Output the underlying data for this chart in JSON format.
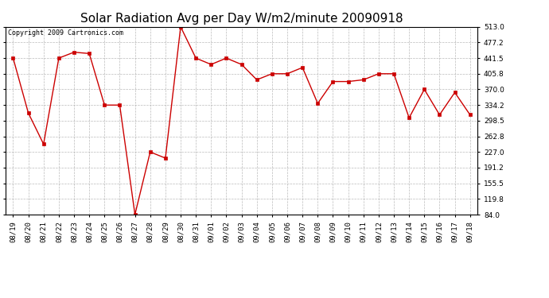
{
  "title": "Solar Radiation Avg per Day W/m2/minute 20090918",
  "copyright": "Copyright 2009 Cartronics.com",
  "x_labels": [
    "08/19",
    "08/20",
    "08/21",
    "08/22",
    "08/23",
    "08/24",
    "08/25",
    "08/26",
    "08/27",
    "08/28",
    "08/29",
    "08/30",
    "08/31",
    "09/01",
    "09/02",
    "09/03",
    "09/04",
    "09/05",
    "09/06",
    "09/07",
    "09/08",
    "09/09",
    "09/10",
    "09/11",
    "09/12",
    "09/13",
    "09/14",
    "09/15",
    "09/16",
    "09/17",
    "09/18"
  ],
  "y_values": [
    441.5,
    316.0,
    245.0,
    441.5,
    455.0,
    452.0,
    334.2,
    334.2,
    84.0,
    227.0,
    213.0,
    513.0,
    441.5,
    427.0,
    441.5,
    427.0,
    392.0,
    405.8,
    405.8,
    420.0,
    338.0,
    388.0,
    388.0,
    392.0,
    405.8,
    405.8,
    305.0,
    370.0,
    312.0,
    363.0,
    312.0
  ],
  "line_color": "#cc0000",
  "marker_color": "#cc0000",
  "bg_color": "#ffffff",
  "grid_color": "#aaaaaa",
  "ylim": [
    84.0,
    513.0
  ],
  "yticks": [
    84.0,
    119.8,
    155.5,
    191.2,
    227.0,
    262.8,
    298.5,
    334.2,
    370.0,
    405.8,
    441.5,
    477.2,
    513.0
  ],
  "title_fontsize": 11,
  "copyright_fontsize": 6,
  "tick_fontsize": 6.5,
  "ytick_fontsize": 6.5
}
